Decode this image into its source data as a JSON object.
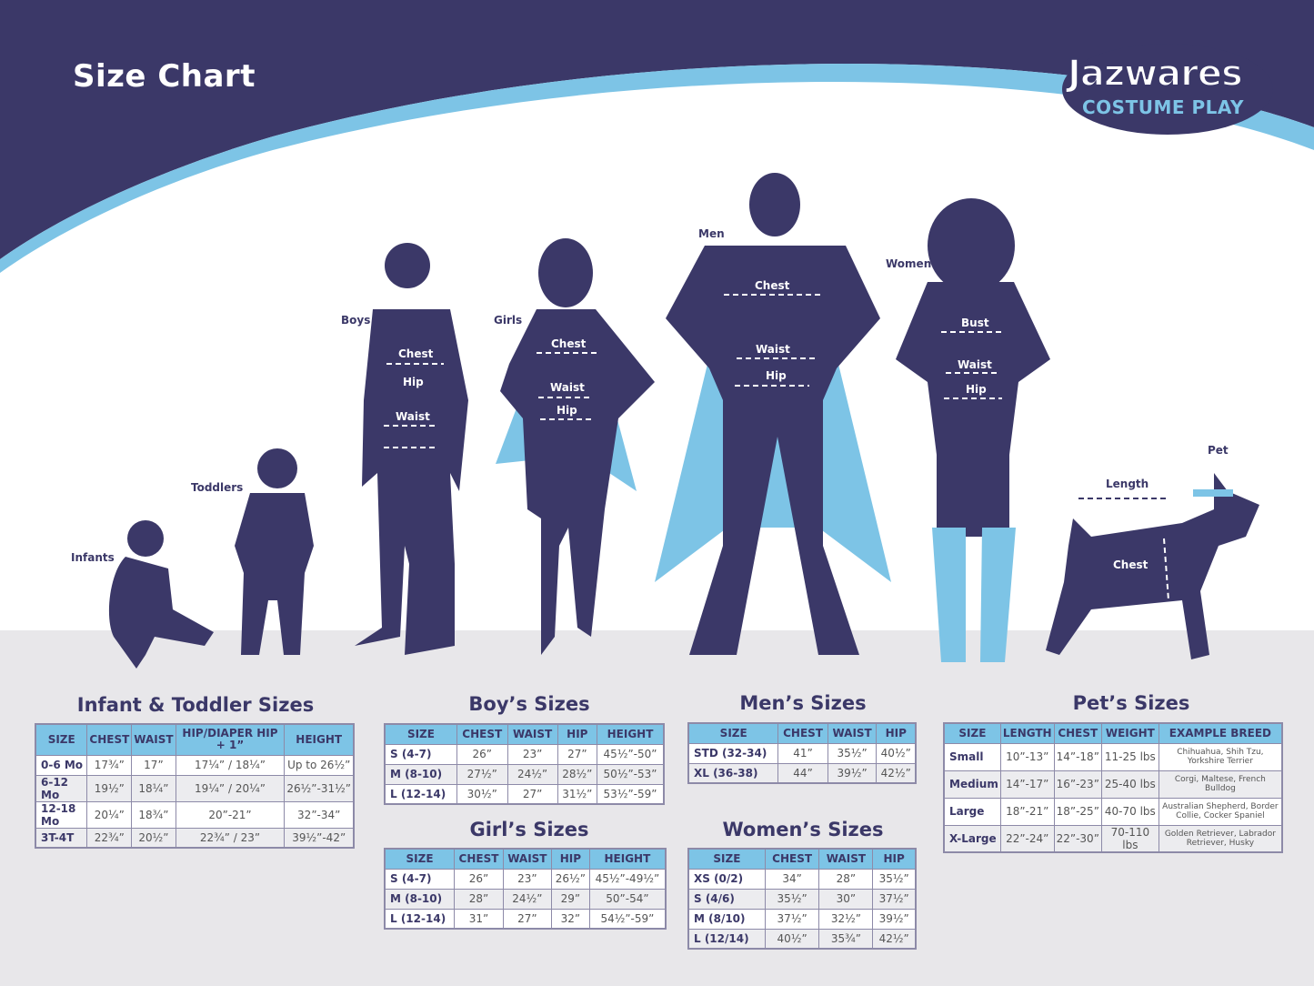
{
  "header": {
    "title": "Size Chart"
  },
  "logo": {
    "line1": "Jazwares",
    "line2": "COSTUME PLAY"
  },
  "colors": {
    "navy": "#3b3868",
    "light_blue": "#7dc4e6",
    "gray_band": "#e8e7ea",
    "white": "#ffffff"
  },
  "figures": {
    "infants": "Infants",
    "toddlers": "Toddlers",
    "boys": {
      "label": "Boys",
      "chest": "Chest",
      "hip": "Hip",
      "waist": "Waist"
    },
    "girls": {
      "label": "Girls",
      "chest": "Chest",
      "waist": "Waist",
      "hip": "Hip"
    },
    "men": {
      "label": "Men",
      "chest": "Chest",
      "waist": "Waist",
      "hip": "Hip"
    },
    "women": {
      "label": "Women",
      "bust": "Bust",
      "waist": "Waist",
      "hip": "Hip"
    },
    "pet": {
      "label": "Pet",
      "length": "Length",
      "chest": "Chest"
    }
  },
  "tables": {
    "infant": {
      "title": "Infant & Toddler Sizes",
      "headers": [
        "SIZE",
        "CHEST",
        "WAIST",
        "HIP/DIAPER HIP + 1”",
        "HEIGHT"
      ],
      "rows": [
        [
          "0-6 Mo",
          "17¾”",
          "17”",
          "17¼” / 18¼”",
          "Up to 26½”"
        ],
        [
          "6-12 Mo",
          "19½”",
          "18¼”",
          "19¼” / 20¼”",
          "26½”-31½”"
        ],
        [
          "12-18 Mo",
          "20¼”",
          "18¾”",
          "20”-21”",
          "32”-34”"
        ],
        [
          "3T-4T",
          "22¾”",
          "20½”",
          "22¾” / 23”",
          "39½”-42”"
        ]
      ]
    },
    "boys": {
      "title": "Boy’s Sizes",
      "headers": [
        "SIZE",
        "CHEST",
        "WAIST",
        "HIP",
        "HEIGHT"
      ],
      "rows": [
        [
          "S (4-7)",
          "26”",
          "23”",
          "27”",
          "45½”-50”"
        ],
        [
          "M (8-10)",
          "27½”",
          "24½”",
          "28½”",
          "50½”-53”"
        ],
        [
          "L (12-14)",
          "30½”",
          "27”",
          "31½”",
          "53½”-59”"
        ]
      ]
    },
    "girls": {
      "title": "Girl’s Sizes",
      "headers": [
        "SIZE",
        "CHEST",
        "WAIST",
        "HIP",
        "HEIGHT"
      ],
      "rows": [
        [
          "S (4-7)",
          "26”",
          "23”",
          "26½”",
          "45½”-49½”"
        ],
        [
          "M (8-10)",
          "28”",
          "24½”",
          "29”",
          "50”-54”"
        ],
        [
          "L (12-14)",
          "31”",
          "27”",
          "32”",
          "54½”-59”"
        ]
      ]
    },
    "men": {
      "title": "Men’s Sizes",
      "headers": [
        "SIZE",
        "CHEST",
        "WAIST",
        "HIP"
      ],
      "rows": [
        [
          "STD (32-34)",
          "41”",
          "35½”",
          "40½”"
        ],
        [
          "XL (36-38)",
          "44”",
          "39½”",
          "42½”"
        ]
      ]
    },
    "women": {
      "title": "Women’s Sizes",
      "headers": [
        "SIZE",
        "CHEST",
        "WAIST",
        "HIP"
      ],
      "rows": [
        [
          "XS (0/2)",
          "34”",
          "28”",
          "35½”"
        ],
        [
          "S (4/6)",
          "35½”",
          "30”",
          "37½”"
        ],
        [
          "M (8/10)",
          "37½”",
          "32½”",
          "39½”"
        ],
        [
          "L (12/14)",
          "40½”",
          "35¾”",
          "42½”"
        ]
      ]
    },
    "pets": {
      "title": "Pet’s Sizes",
      "headers": [
        "SIZE",
        "LENGTH",
        "CHEST",
        "WEIGHT",
        "EXAMPLE BREED"
      ],
      "rows": [
        [
          "Small",
          "10”-13”",
          "14”-18”",
          "11-25 lbs",
          "Chihuahua, Shih Tzu, Yorkshire Terrier"
        ],
        [
          "Medium",
          "14”-17”",
          "16”-23”",
          "25-40 lbs",
          "Corgi, Maltese, French Bulldog"
        ],
        [
          "Large",
          "18”-21”",
          "18”-25”",
          "40-70 lbs",
          "Australian Shepherd, Border Collie, Cocker Spaniel"
        ],
        [
          "X-Large",
          "22”-24”",
          "22”-30”",
          "70-110 lbs",
          "Golden Retriever, Labrador Retriever, Husky"
        ]
      ]
    }
  }
}
